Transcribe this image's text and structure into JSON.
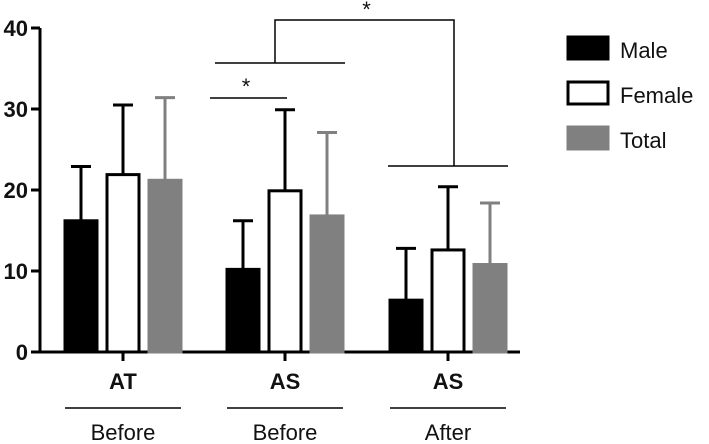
{
  "chart_data": {
    "type": "bar",
    "title": "",
    "xlabel": "",
    "ylabel": "",
    "ylim": [
      0,
      40
    ],
    "yticks": [
      0,
      10,
      20,
      30,
      40
    ],
    "categories": [
      "AT",
      "AS",
      "AS"
    ],
    "groups": [
      "Before",
      "Before",
      "After"
    ],
    "series": [
      {
        "name": "Male",
        "color": "#000000",
        "fill": "#000000",
        "values": [
          16.2,
          10.2,
          6.4
        ],
        "errors": [
          6.7,
          6.0,
          6.4
        ]
      },
      {
        "name": "Female",
        "color": "#000000",
        "fill": "#ffffff",
        "values": [
          21.9,
          19.9,
          12.6
        ],
        "errors": [
          8.6,
          10.0,
          7.8
        ]
      },
      {
        "name": "Total",
        "color": "#808080",
        "fill": "#808080",
        "values": [
          21.2,
          16.8,
          10.8
        ],
        "errors": [
          10.2,
          10.3,
          7.6
        ]
      }
    ],
    "legend": {
      "position": "top-right"
    },
    "significance": [
      {
        "label": "*",
        "between": "Male vs Female (AS Before)"
      },
      {
        "label": "*",
        "between": "AS Before vs AS After"
      }
    ]
  }
}
